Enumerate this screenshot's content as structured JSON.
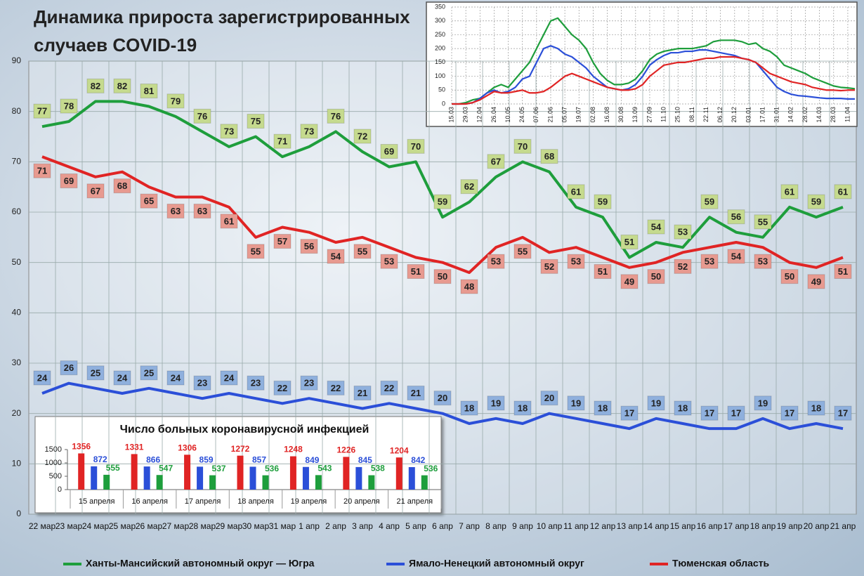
{
  "chart_data": [
    {
      "type": "line",
      "title": "Динамика прироста зарегистрированных случаев COVID-19",
      "categories": [
        "22 мар",
        "23 мар",
        "24 мар",
        "25 мар",
        "26 мар",
        "27 мар",
        "28 мар",
        "29 мар",
        "30 мар",
        "31 мар",
        "1 апр",
        "2 апр",
        "3 апр",
        "4 апр",
        "5 апр",
        "6 апр",
        "7 апр",
        "8 апр",
        "9 апр",
        "10 апр",
        "11 апр",
        "12 апр",
        "13 апр",
        "14 апр",
        "15 апр",
        "16 апр",
        "17 апр",
        "18 апр",
        "19 апр",
        "20 апр",
        "21 апр"
      ],
      "series": [
        {
          "name": "Ханты-Мансийский автономный округ — Югра",
          "color": "#1e9e3c",
          "label_color": "#c5da8e",
          "values": [
            77,
            78,
            82,
            82,
            81,
            79,
            76,
            73,
            75,
            71,
            73,
            76,
            72,
            69,
            70,
            59,
            62,
            67,
            70,
            68,
            61,
            59,
            51,
            54,
            53,
            59,
            56,
            55,
            61,
            59,
            61
          ]
        },
        {
          "name": "Ямало-Ненецкий автономный округ",
          "color": "#2b4fd8",
          "label_color": "#8fb0dd",
          "values": [
            24,
            26,
            25,
            24,
            25,
            24,
            23,
            24,
            23,
            22,
            23,
            22,
            21,
            22,
            21,
            20,
            18,
            19,
            18,
            20,
            19,
            18,
            17,
            19,
            18,
            17,
            17,
            19,
            17,
            18,
            17
          ]
        },
        {
          "name": "Тюменская область",
          "color": "#e02424",
          "label_color": "#e79a90",
          "values": [
            71,
            69,
            67,
            68,
            65,
            63,
            63,
            61,
            55,
            57,
            56,
            54,
            55,
            53,
            51,
            50,
            48,
            53,
            55,
            52,
            53,
            51,
            49,
            50,
            52,
            53,
            54,
            53,
            50,
            49,
            51
          ]
        }
      ],
      "ylim": [
        0,
        90
      ],
      "yticks": [
        0,
        10,
        20,
        30,
        40,
        50,
        60,
        70,
        80,
        90
      ],
      "grid": true,
      "legend": "bottom"
    },
    {
      "type": "line",
      "categories": [
        "15.03",
        null,
        "29.03",
        null,
        "12.04",
        null,
        "26.04",
        null,
        "10.05",
        null,
        "24.05",
        null,
        "07.06",
        null,
        "21.06",
        null,
        "05.07",
        null,
        "19.07",
        null,
        "02.08",
        null,
        "16.08",
        null,
        "30.08",
        null,
        "13.09",
        null,
        "27.09",
        null,
        "11.10",
        null,
        "25.10",
        null,
        "08.11",
        null,
        "22.11",
        null,
        "06.12",
        null,
        "20.12",
        null,
        "03.01",
        null,
        "17.01",
        null,
        "31.01",
        null,
        "14.02",
        null,
        "28.02",
        null,
        "14.03",
        null,
        "28.03",
        null,
        "11.04",
        null
      ],
      "series": [
        {
          "color": "#1e9e3c",
          "values": [
            0,
            0,
            5,
            15,
            20,
            40,
            60,
            70,
            60,
            90,
            120,
            150,
            200,
            250,
            300,
            310,
            280,
            250,
            230,
            200,
            150,
            110,
            85,
            70,
            70,
            75,
            90,
            120,
            160,
            180,
            190,
            195,
            200,
            200,
            200,
            205,
            210,
            225,
            230,
            230,
            230,
            225,
            215,
            220,
            200,
            190,
            170,
            140,
            130,
            120,
            110,
            95,
            85,
            75,
            65,
            60,
            58,
            55
          ]
        },
        {
          "color": "#2b4fd8",
          "values": [
            0,
            0,
            0,
            5,
            20,
            40,
            50,
            40,
            45,
            60,
            90,
            100,
            150,
            200,
            210,
            200,
            180,
            170,
            150,
            130,
            100,
            80,
            60,
            55,
            50,
            55,
            70,
            100,
            140,
            160,
            175,
            185,
            185,
            190,
            190,
            195,
            195,
            190,
            185,
            180,
            175,
            165,
            160,
            150,
            120,
            90,
            60,
            45,
            35,
            30,
            28,
            25,
            22,
            20,
            20,
            20,
            18,
            18
          ]
        },
        {
          "color": "#e02424",
          "values": [
            0,
            0,
            0,
            5,
            15,
            30,
            45,
            40,
            40,
            45,
            50,
            40,
            40,
            45,
            60,
            80,
            100,
            110,
            100,
            90,
            80,
            70,
            60,
            55,
            50,
            50,
            55,
            70,
            100,
            120,
            140,
            145,
            150,
            150,
            155,
            160,
            165,
            165,
            170,
            170,
            170,
            165,
            160,
            150,
            130,
            110,
            100,
            90,
            80,
            75,
            70,
            60,
            55,
            50,
            50,
            48,
            50,
            50
          ]
        }
      ],
      "ylim": [
        0,
        350
      ],
      "yticks": [
        0,
        50,
        100,
        150,
        200,
        250,
        300,
        350
      ],
      "grid": true
    },
    {
      "type": "bar",
      "title": "Число больных коронавирусной инфекцией",
      "categories": [
        "15 апреля",
        "16 апреля",
        "17 апреля",
        "18 апреля",
        "19 апреля",
        "20 апреля",
        "21 апреля"
      ],
      "series": [
        {
          "color": "#e02424",
          "values": [
            1356,
            1331,
            1306,
            1272,
            1248,
            1226,
            1204
          ]
        },
        {
          "color": "#2b4fd8",
          "values": [
            872,
            866,
            859,
            857,
            849,
            845,
            842
          ]
        },
        {
          "color": "#1e9e3c",
          "values": [
            555,
            547,
            537,
            536,
            543,
            538,
            536
          ]
        }
      ],
      "ylim": [
        0,
        1500
      ],
      "yticks": [
        0,
        500,
        1000,
        1500
      ]
    }
  ]
}
